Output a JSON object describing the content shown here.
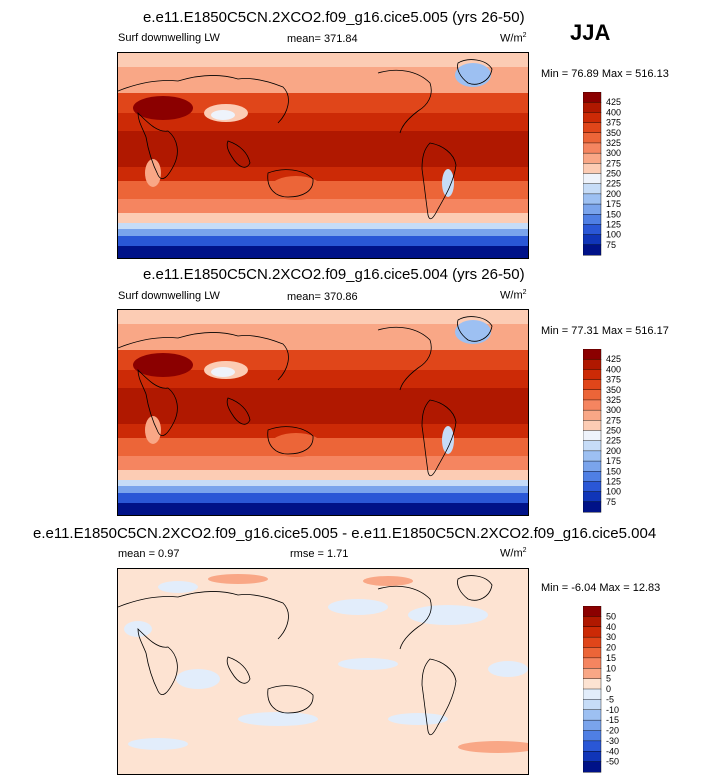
{
  "season": "JJA",
  "panels": [
    {
      "title": "e.e11.E1850C5CN.2XCO2.f09_g16.cice5.005 (yrs 26-50)",
      "left_label": "Surf downwelling LW",
      "center_label": "mean= 371.84",
      "units_base": "W/m",
      "units_exp": "2",
      "minmax": "Min =  76.89 Max = 516.13",
      "colorbar": {
        "levels": [
          "425",
          "400",
          "375",
          "350",
          "325",
          "300",
          "275",
          "250",
          "225",
          "200",
          "175",
          "150",
          "125",
          "100",
          "75"
        ],
        "colors": [
          "#8b0000",
          "#b01800",
          "#cc2a06",
          "#e0461a",
          "#ec6538",
          "#f58560",
          "#f9a786",
          "#fcccb4",
          "#eef3fb",
          "#c6dcf7",
          "#9dc0f2",
          "#7aa4ec",
          "#4f7fe4",
          "#2a57d6",
          "#1035b8",
          "#001288"
        ]
      }
    },
    {
      "title": "e.e11.E1850C5CN.2XCO2.f09_g16.cice5.004 (yrs 26-50)",
      "left_label": "Surf downwelling LW",
      "center_label": "mean= 370.86",
      "units_base": "W/m",
      "units_exp": "2",
      "minmax": "Min =  77.31 Max = 516.17",
      "colorbar": {
        "levels": [
          "425",
          "400",
          "375",
          "350",
          "325",
          "300",
          "275",
          "250",
          "225",
          "200",
          "175",
          "150",
          "125",
          "100",
          "75"
        ],
        "colors": [
          "#8b0000",
          "#b01800",
          "#cc2a06",
          "#e0461a",
          "#ec6538",
          "#f58560",
          "#f9a786",
          "#fcccb4",
          "#eef3fb",
          "#c6dcf7",
          "#9dc0f2",
          "#7aa4ec",
          "#4f7fe4",
          "#2a57d6",
          "#1035b8",
          "#001288"
        ]
      }
    },
    {
      "title": "e.e11.E1850C5CN.2XCO2.f09_g16.cice5.005 - e.e11.E1850C5CN.2XCO2.f09_g16.cice5.004",
      "left_label": "mean =   0.97",
      "center_label": "rmse =   1.71",
      "units_base": "W/m",
      "units_exp": "2",
      "minmax": "Min =  -6.04 Max =  12.83",
      "colorbar": {
        "levels": [
          "50",
          "40",
          "30",
          "20",
          "15",
          "10",
          "5",
          "0",
          "-5",
          "-10",
          "-15",
          "-20",
          "-30",
          "-40",
          "-50"
        ],
        "colors": [
          "#8b0000",
          "#b01800",
          "#cc2a06",
          "#e0461a",
          "#ec6538",
          "#f58560",
          "#f9a786",
          "#fde3d2",
          "#e2edfb",
          "#c6dcf7",
          "#9dc0f2",
          "#7aa4ec",
          "#4f7fe4",
          "#2a57d6",
          "#1035b8",
          "#001288"
        ]
      }
    }
  ],
  "chart_data": [
    {
      "type": "heatmap",
      "title": "e.e11.E1850C5CN.2XCO2.f09_g16.cice5.005 (yrs 26-50)",
      "variable": "Surf downwelling LW",
      "units": "W/m2",
      "mean": 371.84,
      "min": 76.89,
      "max": 516.13,
      "contour_levels": [
        75,
        100,
        125,
        150,
        175,
        200,
        225,
        250,
        275,
        300,
        325,
        350,
        375,
        400,
        425
      ]
    },
    {
      "type": "heatmap",
      "title": "e.e11.E1850C5CN.2XCO2.f09_g16.cice5.004 (yrs 26-50)",
      "variable": "Surf downwelling LW",
      "units": "W/m2",
      "mean": 370.86,
      "min": 77.31,
      "max": 516.17,
      "contour_levels": [
        75,
        100,
        125,
        150,
        175,
        200,
        225,
        250,
        275,
        300,
        325,
        350,
        375,
        400,
        425
      ]
    },
    {
      "type": "heatmap",
      "title": "e.e11.E1850C5CN.2XCO2.f09_g16.cice5.005 - e.e11.E1850C5CN.2XCO2.f09_g16.cice5.004",
      "units": "W/m2",
      "mean": 0.97,
      "rmse": 1.71,
      "min": -6.04,
      "max": 12.83,
      "contour_levels": [
        -50,
        -40,
        -30,
        -20,
        -15,
        -10,
        -5,
        0,
        5,
        10,
        15,
        20,
        30,
        40,
        50
      ]
    }
  ]
}
